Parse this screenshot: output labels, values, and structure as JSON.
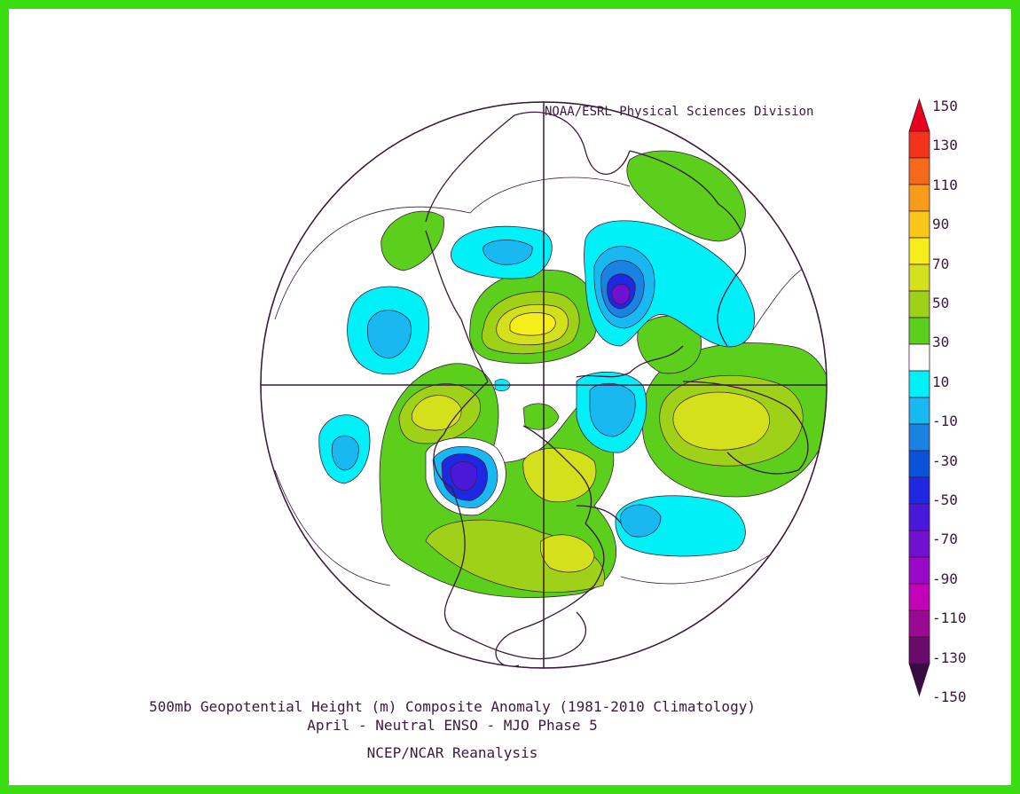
{
  "credit": "NOAA/ESRL Physical Sciences Division",
  "title_line1": "500mb Geopotential Height (m) Composite Anomaly (1981-2010 Climatology)",
  "title_line2": "April - Neutral ENSO - MJO Phase 5",
  "source": "NCEP/NCAR Reanalysis",
  "colorbar": {
    "labels": [
      "150",
      "130",
      "110",
      "90",
      "70",
      "50",
      "30",
      "10",
      "-10",
      "-30",
      "-50",
      "-70",
      "-90",
      "-110",
      "-130",
      "-150"
    ],
    "colors": [
      "#e8001c",
      "#f2331a",
      "#f56a1a",
      "#f79c19",
      "#f8c719",
      "#f6ee1b",
      "#d4e01c",
      "#9fd118",
      "#5bcf1c",
      "#ffffff",
      "#00f0f8",
      "#1ab8f0",
      "#1a82e0",
      "#0a52d8",
      "#1e28e0",
      "#4a18d8",
      "#7010d0",
      "#9a08c8",
      "#c400b8",
      "#9a0a90",
      "#6a0a6a",
      "#3a0a42"
    ]
  },
  "colors": {
    "frame": "#39dd10",
    "coast": "#3a1a3a"
  }
}
